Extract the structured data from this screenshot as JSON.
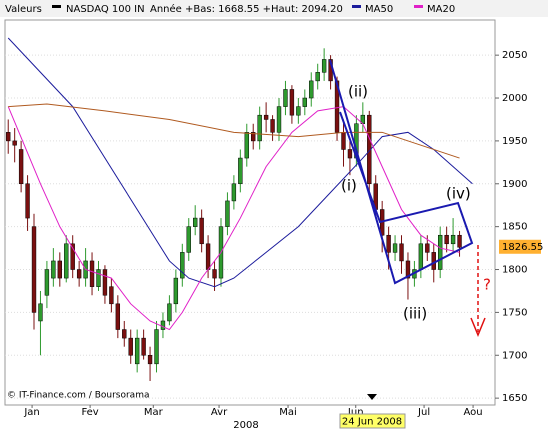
{
  "chart_data": {
    "type": "candlestick",
    "header": {
      "label": "Valeurs",
      "name": "NASDAQ 100 IN",
      "range": "Année +Bas: 1668.55 +Haut: 2094.20"
    },
    "open": [
      1960,
      1950,
      1940,
      1900,
      1850,
      1740,
      1770,
      1790,
      1810,
      1790,
      1830,
      1800,
      1790,
      1810,
      1780,
      1800,
      1780,
      1760,
      1730,
      1720,
      1690,
      1720,
      1700,
      1690,
      1730,
      1740,
      1760,
      1790,
      1820,
      1850,
      1860,
      1830,
      1800,
      1790,
      1850,
      1880,
      1900,
      1930,
      1960,
      1950,
      1980,
      1975,
      1960,
      1990,
      2010,
      1980,
      1990,
      2000,
      2020,
      2030,
      2045,
      2020,
      1960,
      1940,
      1930,
      1970,
      1980,
      1900,
      1870,
      1840,
      1820,
      1830,
      1810,
      1790,
      1800,
      1830,
      1820,
      1800,
      1840,
      1830,
      1840
    ],
    "high": [
      1975,
      1965,
      1950,
      1910,
      1865,
      1775,
      1810,
      1825,
      1820,
      1840,
      1840,
      1810,
      1825,
      1820,
      1810,
      1805,
      1790,
      1770,
      1740,
      1730,
      1730,
      1730,
      1710,
      1740,
      1750,
      1770,
      1800,
      1830,
      1860,
      1875,
      1870,
      1840,
      1810,
      1860,
      1890,
      1910,
      1940,
      1970,
      1970,
      1990,
      1995,
      1980,
      2000,
      2020,
      2015,
      2000,
      2010,
      2030,
      2040,
      2058,
      2050,
      2025,
      1975,
      1950,
      1980,
      1995,
      1985,
      1910,
      1880,
      1850,
      1840,
      1840,
      1820,
      1810,
      1840,
      1840,
      1830,
      1850,
      1850,
      1860,
      1845
    ],
    "low": [
      1935,
      1925,
      1890,
      1845,
      1730,
      1700,
      1755,
      1780,
      1780,
      1785,
      1790,
      1780,
      1780,
      1770,
      1775,
      1760,
      1750,
      1720,
      1710,
      1690,
      1680,
      1695,
      1670,
      1680,
      1720,
      1735,
      1750,
      1780,
      1810,
      1840,
      1820,
      1790,
      1775,
      1780,
      1840,
      1870,
      1890,
      1920,
      1940,
      1940,
      1960,
      1950,
      1950,
      1980,
      1970,
      1970,
      1980,
      1990,
      2010,
      2020,
      2010,
      1950,
      1920,
      1910,
      1920,
      1960,
      1890,
      1860,
      1820,
      1800,
      1810,
      1795,
      1765,
      1780,
      1790,
      1810,
      1785,
      1790,
      1820,
      1820,
      1815
    ],
    "close": [
      1950,
      1945,
      1900,
      1860,
      1750,
      1760,
      1800,
      1810,
      1790,
      1830,
      1800,
      1790,
      1810,
      1780,
      1800,
      1770,
      1760,
      1730,
      1720,
      1700,
      1720,
      1700,
      1690,
      1730,
      1740,
      1760,
      1790,
      1820,
      1850,
      1860,
      1830,
      1800,
      1790,
      1850,
      1880,
      1900,
      1930,
      1960,
      1950,
      1980,
      1975,
      1960,
      1990,
      2010,
      1980,
      1990,
      2000,
      2020,
      2030,
      2045,
      2020,
      1960,
      1940,
      1930,
      1970,
      1980,
      1900,
      1870,
      1840,
      1820,
      1830,
      1810,
      1790,
      1800,
      1830,
      1820,
      1800,
      1840,
      1830,
      1840,
      1826
    ],
    "up_color": "#2e9a2e",
    "down_color": "#7a1010",
    "series": [
      {
        "name": "MA50",
        "color": "#1c1c9c",
        "x": [
          0,
          10,
          20,
          25,
          28,
          32,
          35,
          40,
          45,
          50,
          55,
          58,
          62,
          66,
          72
        ],
        "values": [
          2070,
          1990,
          1870,
          1810,
          1790,
          1780,
          1790,
          1820,
          1850,
          1890,
          1930,
          1955,
          1960,
          1940,
          1900
        ]
      },
      {
        "name": "MA20",
        "color": "#e020c8",
        "x": [
          0,
          5,
          8,
          12,
          16,
          19,
          22,
          25,
          27,
          30,
          33,
          36,
          40,
          44,
          48,
          52,
          55,
          58,
          61,
          64,
          67,
          70
        ],
        "values": [
          1990,
          1900,
          1850,
          1800,
          1790,
          1760,
          1740,
          1730,
          1750,
          1790,
          1820,
          1860,
          1920,
          1960,
          1985,
          1990,
          1970,
          1920,
          1870,
          1840,
          1825,
          1820
        ]
      },
      {
        "color": "#b05a20",
        "x": [
          0,
          6,
          15,
          25,
          35,
          45,
          52,
          58,
          64,
          70
        ],
        "values": [
          1990,
          1993,
          1985,
          1975,
          1960,
          1955,
          1960,
          1960,
          1945,
          1930
        ]
      }
    ],
    "xlim": [
      -0.5,
      75.5
    ],
    "ylim": [
      1642,
      2091
    ],
    "yticks": [
      1650,
      1700,
      1750,
      1800,
      1850,
      1900,
      1950,
      2000,
      2050
    ],
    "xticks": [
      {
        "value": 3.7,
        "label": "Jan"
      },
      {
        "value": 12.7,
        "label": "Fev"
      },
      {
        "value": 22.5,
        "label": "Mar"
      },
      {
        "value": 32.7,
        "label": "Avr"
      },
      {
        "value": 43.4,
        "label": "Mai"
      },
      {
        "value": 53.9,
        "label": "Jun"
      },
      {
        "value": 64.5,
        "label": "Jul"
      },
      {
        "value": 72.1,
        "label": "Aou"
      }
    ],
    "year_label": "2008",
    "cursor_date": "24 Jun 2008",
    "last_value": 1826.55,
    "grid": true,
    "annotations": [
      "(i)",
      "(ii)",
      "(iii)",
      "(iv)",
      "?"
    ],
    "source": "© IT-Finance.com / Boursorama"
  }
}
